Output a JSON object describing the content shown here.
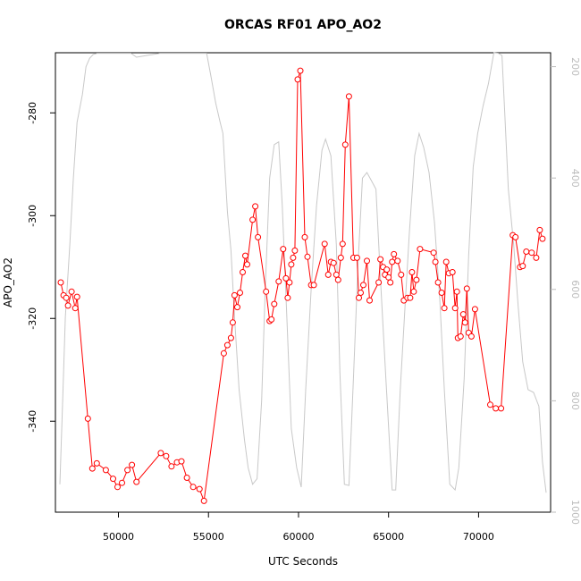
{
  "chart_data": {
    "type": "line",
    "title": "ORCAS RF01 APO_AO2",
    "xlabel": "UTC Seconds",
    "ylabel": "APO_AO2",
    "xlim": [
      46500,
      74000
    ],
    "ylim": [
      -357.7,
      -268.3
    ],
    "y2lim": [
      1000,
      175
    ],
    "x_ticks": [
      50000,
      55000,
      60000,
      65000,
      70000
    ],
    "y_ticks": [
      -340,
      -320,
      -300,
      -280
    ],
    "y2_ticks": [
      200,
      400,
      600,
      800,
      1000
    ],
    "grid": false,
    "legend": "none",
    "colors": {
      "apo": "#ff0000",
      "pressure": "#c8c8c8",
      "frame": "#000000",
      "right_axis": "#bdbdbd"
    },
    "series": [
      {
        "axis": "left",
        "style": "line+markers",
        "color": "#ff0000",
        "points": [
          [
            46800,
            -313
          ],
          [
            46950,
            -315.5
          ],
          [
            47100,
            -316
          ],
          [
            47200,
            -317.5
          ],
          [
            47400,
            -314.8
          ],
          [
            47600,
            -318
          ],
          [
            47700,
            -315.8
          ],
          [
            48300,
            -339.5
          ],
          [
            48550,
            -349.2
          ],
          [
            48800,
            -348.2
          ],
          [
            49300,
            -349.5
          ],
          [
            49700,
            -351.2
          ],
          [
            49950,
            -352.8
          ],
          [
            50200,
            -352
          ],
          [
            50500,
            -349.5
          ],
          [
            50750,
            -348.5
          ],
          [
            51000,
            -351.8
          ],
          [
            52350,
            -346.2
          ],
          [
            52650,
            -346.8
          ],
          [
            52950,
            -348.8
          ],
          [
            53250,
            -348
          ],
          [
            53500,
            -347.8
          ],
          [
            53800,
            -351
          ],
          [
            54150,
            -352.8
          ],
          [
            54500,
            -353.2
          ],
          [
            54750,
            -355.5
          ],
          [
            55850,
            -326.8
          ],
          [
            56050,
            -325.2
          ],
          [
            56250,
            -323.8
          ],
          [
            56350,
            -320.8
          ],
          [
            56450,
            -315.5
          ],
          [
            56600,
            -317.8
          ],
          [
            56750,
            -315
          ],
          [
            56900,
            -311
          ],
          [
            57050,
            -307.8
          ],
          [
            57150,
            -309.5
          ],
          [
            57450,
            -300.8
          ],
          [
            57600,
            -298.2
          ],
          [
            57750,
            -304.2
          ],
          [
            58200,
            -314.8
          ],
          [
            58400,
            -320.5
          ],
          [
            58500,
            -320.2
          ],
          [
            58650,
            -317.2
          ],
          [
            58900,
            -312.8
          ],
          [
            59150,
            -306.5
          ],
          [
            59300,
            -312.2
          ],
          [
            59400,
            -316
          ],
          [
            59500,
            -313
          ],
          [
            59600,
            -309.5
          ],
          [
            59700,
            -308.2
          ],
          [
            59800,
            -306.8
          ],
          [
            59950,
            -273.5
          ],
          [
            60100,
            -271.8
          ],
          [
            60350,
            -304.2
          ],
          [
            60500,
            -308
          ],
          [
            60700,
            -313.5
          ],
          [
            60850,
            -313.5
          ],
          [
            61450,
            -305.5
          ],
          [
            61650,
            -311.5
          ],
          [
            61800,
            -309
          ],
          [
            61950,
            -309.2
          ],
          [
            62100,
            -311.5
          ],
          [
            62200,
            -312.5
          ],
          [
            62350,
            -308.2
          ],
          [
            62450,
            -305.5
          ],
          [
            62600,
            -286.2
          ],
          [
            62800,
            -276.8
          ],
          [
            63050,
            -308.2
          ],
          [
            63250,
            -308.2
          ],
          [
            63350,
            -316
          ],
          [
            63450,
            -315
          ],
          [
            63600,
            -313.5
          ],
          [
            63800,
            -308.8
          ],
          [
            63950,
            -316.5
          ],
          [
            64450,
            -313
          ],
          [
            64550,
            -308.5
          ],
          [
            64700,
            -310
          ],
          [
            64800,
            -311.5
          ],
          [
            64900,
            -310.5
          ],
          [
            65000,
            -312
          ],
          [
            65100,
            -313
          ],
          [
            65200,
            -309
          ],
          [
            65300,
            -307.5
          ],
          [
            65500,
            -308.8
          ],
          [
            65700,
            -311.5
          ],
          [
            65850,
            -316.5
          ],
          [
            66050,
            -316
          ],
          [
            66200,
            -316
          ],
          [
            66300,
            -311
          ],
          [
            66400,
            -314.8
          ],
          [
            66550,
            -312.5
          ],
          [
            66750,
            -306.5
          ],
          [
            67500,
            -307.2
          ],
          [
            67600,
            -309
          ],
          [
            67750,
            -313
          ],
          [
            67950,
            -315
          ],
          [
            68100,
            -318
          ],
          [
            68200,
            -309
          ],
          [
            68350,
            -311.2
          ],
          [
            68550,
            -311
          ],
          [
            68700,
            -318
          ],
          [
            68800,
            -314.8
          ],
          [
            68850,
            -323.8
          ],
          [
            69000,
            -323.5
          ],
          [
            69150,
            -319.2
          ],
          [
            69250,
            -320.8
          ],
          [
            69350,
            -314.2
          ],
          [
            69450,
            -322.8
          ],
          [
            69600,
            -323.5
          ],
          [
            69800,
            -318.2
          ],
          [
            70650,
            -336.8
          ],
          [
            70950,
            -337.5
          ],
          [
            71250,
            -337.5
          ],
          [
            71900,
            -303.8
          ],
          [
            72050,
            -304.2
          ],
          [
            72300,
            -310
          ],
          [
            72450,
            -309.8
          ],
          [
            72650,
            -307
          ],
          [
            72950,
            -307.2
          ],
          [
            73200,
            -308.2
          ],
          [
            73400,
            -302.8
          ],
          [
            73550,
            -304.5
          ]
        ]
      },
      {
        "axis": "right",
        "style": "line",
        "color": "#c8c8c8",
        "points": [
          [
            46750,
            950
          ],
          [
            46900,
            800
          ],
          [
            47050,
            650
          ],
          [
            47300,
            520
          ],
          [
            47500,
            400
          ],
          [
            47700,
            300
          ],
          [
            48000,
            250
          ],
          [
            48200,
            200
          ],
          [
            48400,
            185
          ],
          [
            48600,
            178
          ],
          [
            48800,
            176
          ],
          [
            50700,
            176
          ],
          [
            51000,
            183
          ],
          [
            52300,
            176
          ],
          [
            54900,
            176
          ],
          [
            55150,
            220
          ],
          [
            55400,
            265
          ],
          [
            55650,
            300
          ],
          [
            55800,
            320
          ],
          [
            56050,
            460
          ],
          [
            56250,
            530
          ],
          [
            56450,
            650
          ],
          [
            56700,
            780
          ],
          [
            57000,
            870
          ],
          [
            57200,
            920
          ],
          [
            57450,
            950
          ],
          [
            57700,
            940
          ],
          [
            57950,
            800
          ],
          [
            58150,
            600
          ],
          [
            58400,
            400
          ],
          [
            58650,
            340
          ],
          [
            58900,
            335
          ],
          [
            59100,
            450
          ],
          [
            59350,
            650
          ],
          [
            59600,
            850
          ],
          [
            59900,
            920
          ],
          [
            60150,
            955
          ],
          [
            60400,
            780
          ],
          [
            60700,
            600
          ],
          [
            61000,
            450
          ],
          [
            61300,
            350
          ],
          [
            61500,
            330
          ],
          [
            61800,
            360
          ],
          [
            62100,
            520
          ],
          [
            62300,
            750
          ],
          [
            62550,
            950
          ],
          [
            62800,
            952
          ],
          [
            63050,
            760
          ],
          [
            63300,
            560
          ],
          [
            63550,
            400
          ],
          [
            63800,
            390
          ],
          [
            64050,
            405
          ],
          [
            64300,
            420
          ],
          [
            64550,
            580
          ],
          [
            64850,
            760
          ],
          [
            65200,
            960
          ],
          [
            65400,
            960
          ],
          [
            65650,
            780
          ],
          [
            65900,
            640
          ],
          [
            66150,
            500
          ],
          [
            66450,
            360
          ],
          [
            66700,
            320
          ],
          [
            66950,
            345
          ],
          [
            67250,
            390
          ],
          [
            67550,
            480
          ],
          [
            67850,
            620
          ],
          [
            68100,
            780
          ],
          [
            68400,
            950
          ],
          [
            68700,
            960
          ],
          [
            68900,
            920
          ],
          [
            69200,
            760
          ],
          [
            69450,
            540
          ],
          [
            69700,
            380
          ],
          [
            69950,
            320
          ],
          [
            70250,
            270
          ],
          [
            70550,
            230
          ],
          [
            70850,
            175
          ],
          [
            71100,
            176
          ],
          [
            71300,
            180
          ],
          [
            71450,
            280
          ],
          [
            71650,
            420
          ],
          [
            71950,
            520
          ],
          [
            72200,
            630
          ],
          [
            72450,
            730
          ],
          [
            72750,
            780
          ],
          [
            73050,
            785
          ],
          [
            73350,
            810
          ],
          [
            73550,
            910
          ],
          [
            73750,
            965
          ]
        ]
      }
    ]
  }
}
